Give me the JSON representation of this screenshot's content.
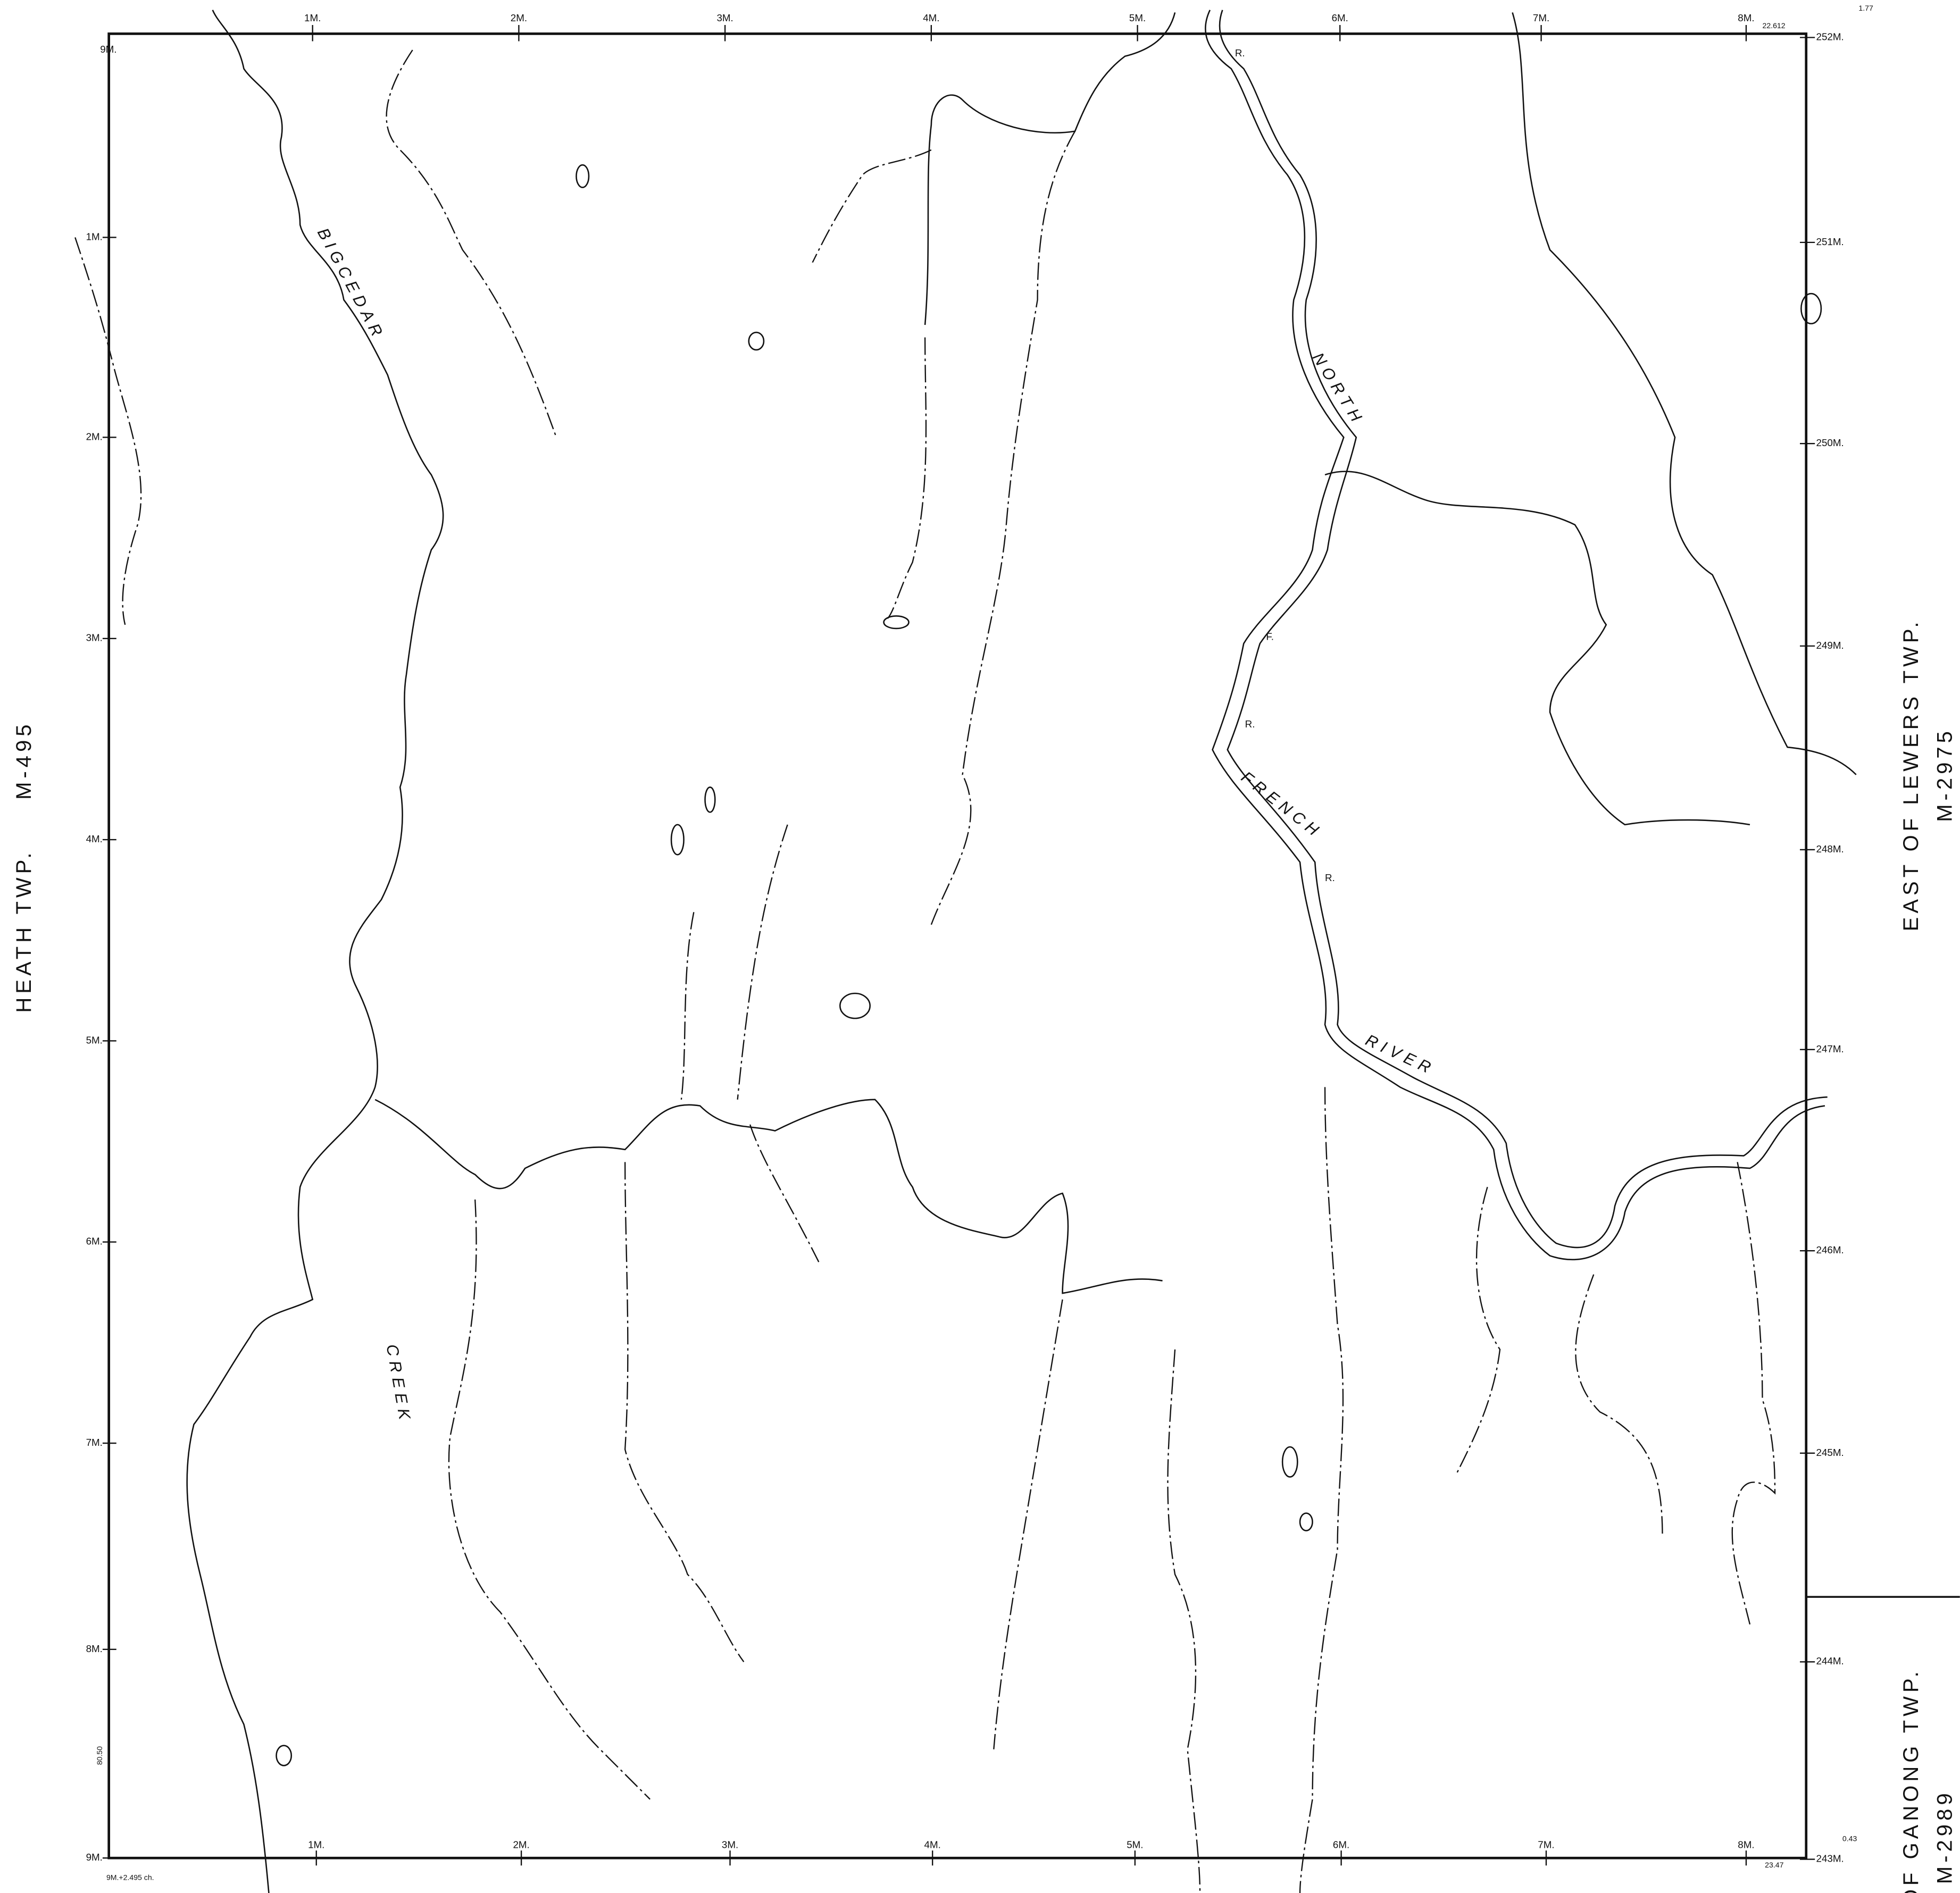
{
  "grid": {
    "top": [
      "1M.",
      "2M.",
      "3M.",
      "4M.",
      "5M.",
      "6M.",
      "7M.",
      "8M."
    ],
    "left": [
      "9M.",
      "1M.",
      "2M.",
      "3M.",
      "4M.",
      "5M.",
      "6M.",
      "7M.",
      "8M.",
      "9M."
    ],
    "right": [
      "252M.",
      "251M.",
      "250M.",
      "249M.",
      "248M.",
      "247M.",
      "246M.",
      "245M.",
      "244M.",
      "243M."
    ],
    "bottom": [
      "1M.",
      "2M.",
      "3M.",
      "4M.",
      "5M.",
      "6M.",
      "7M.",
      "8M."
    ]
  },
  "adjoining": [
    {
      "name": "HEATH TWP.",
      "plan": "M-495"
    },
    {
      "name": "EAST OF LEWERS TWP.",
      "plan": "M-2975"
    },
    {
      "name": "OF GANONG TWP.",
      "plan": "M-2989"
    }
  ],
  "water_labels": [
    "BIGCEDAR",
    "CREEK",
    "NORTH",
    "FRENCH",
    "RIVER",
    "R.",
    "F.",
    "R.",
    "R."
  ],
  "measurements": [
    "22.612",
    "1.77",
    "0.43",
    "23.47",
    "80.50",
    "9M.+2.495 ch."
  ]
}
